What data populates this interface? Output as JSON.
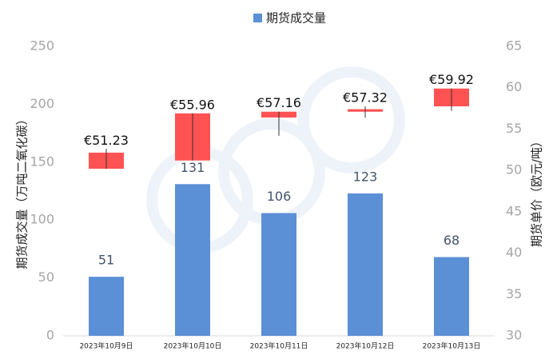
{
  "chart_data": {
    "type": "bar",
    "categories": [
      "2023年10月9日",
      "2023年10月10日",
      "2023年10月11日",
      "2023年10月12日",
      "2023年10月13日"
    ],
    "series": [
      {
        "name": "期货成交量",
        "type": "bar",
        "color": "#5b8fd6",
        "values": [
          51,
          131,
          106,
          123,
          68
        ]
      },
      {
        "type": "candlestick",
        "axis": "y2",
        "color": "#ff5252",
        "open": [
          50.2,
          51.2,
          56.4,
          57.1,
          57.75
        ],
        "close": [
          52.15,
          56.9,
          57.1,
          57.4,
          59.9
        ],
        "high": [
          52.6,
          56.9,
          57.1,
          57.75,
          59.9
        ],
        "low": [
          50.2,
          51.2,
          54.2,
          56.4,
          57.2
        ],
        "price_labels": [
          "€51.23",
          "€55.96",
          "€57.16",
          "€57.32",
          "€59.92"
        ]
      }
    ],
    "ylabel": "期货成交量（万吨二氧化碳）",
    "y2label": "期货单价（欧元/吨）",
    "ylim": [
      0,
      250
    ],
    "yticks": [
      0,
      50,
      100,
      150,
      200,
      250
    ],
    "y2lim": [
      30,
      65
    ],
    "y2ticks": [
      30,
      35,
      40,
      45,
      50,
      55,
      60,
      65
    ],
    "legend": "top"
  }
}
